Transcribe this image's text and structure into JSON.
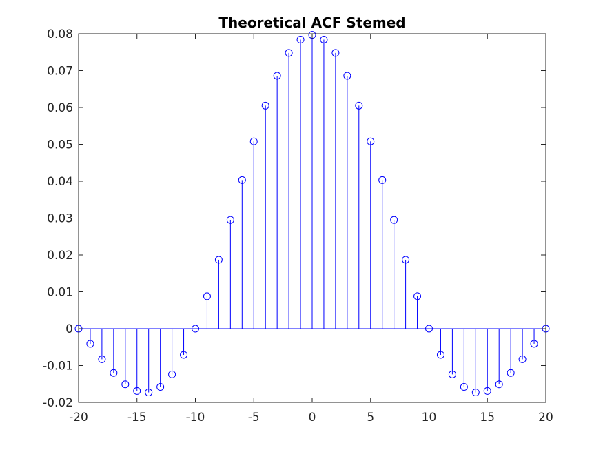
{
  "chart_data": {
    "type": "stem",
    "title": "Theoretical ACF Stemed",
    "xlabel": "",
    "ylabel": "",
    "xlim": [
      -20,
      20
    ],
    "ylim": [
      -0.02,
      0.08
    ],
    "grid": false,
    "x_ticks": [
      -20,
      -15,
      -10,
      -5,
      0,
      5,
      10,
      15,
      20
    ],
    "x_tick_labels": [
      "-20",
      "-15",
      "-10",
      "-5",
      "0",
      "5",
      "10",
      "15",
      "20"
    ],
    "y_ticks": [
      -0.02,
      -0.01,
      0,
      0.01,
      0.02,
      0.03,
      0.04,
      0.05,
      0.06,
      0.07,
      0.08
    ],
    "y_tick_labels": [
      "-0.02",
      "-0.01",
      "0",
      "0.01",
      "0.02",
      "0.03",
      "0.04",
      "0.05",
      "0.06",
      "0.07",
      "0.08"
    ],
    "x": [
      -20,
      -19,
      -18,
      -17,
      -16,
      -15,
      -14,
      -13,
      -12,
      -11,
      -10,
      -9,
      -8,
      -7,
      -6,
      -5,
      -4,
      -3,
      -2,
      -1,
      0,
      1,
      2,
      3,
      4,
      5,
      6,
      7,
      8,
      9,
      10,
      11,
      12,
      13,
      14,
      15,
      16,
      17,
      18,
      19,
      20
    ],
    "values": [
      0.0,
      -0.0041,
      -0.0083,
      -0.012,
      -0.0151,
      -0.0169,
      -0.0173,
      -0.0158,
      -0.0124,
      -0.0071,
      0.0,
      0.0088,
      0.0187,
      0.0295,
      0.0403,
      0.0508,
      0.0605,
      0.0686,
      0.0748,
      0.0784,
      0.0797,
      0.0784,
      0.0748,
      0.0686,
      0.0605,
      0.0508,
      0.0403,
      0.0295,
      0.0187,
      0.0088,
      0.0,
      -0.0071,
      -0.0124,
      -0.0158,
      -0.0173,
      -0.0169,
      -0.0151,
      -0.012,
      -0.0083,
      -0.0041,
      0.0
    ],
    "colors": {
      "stem": "#0000ff",
      "axis": "#262626",
      "background": "#ffffff"
    }
  }
}
